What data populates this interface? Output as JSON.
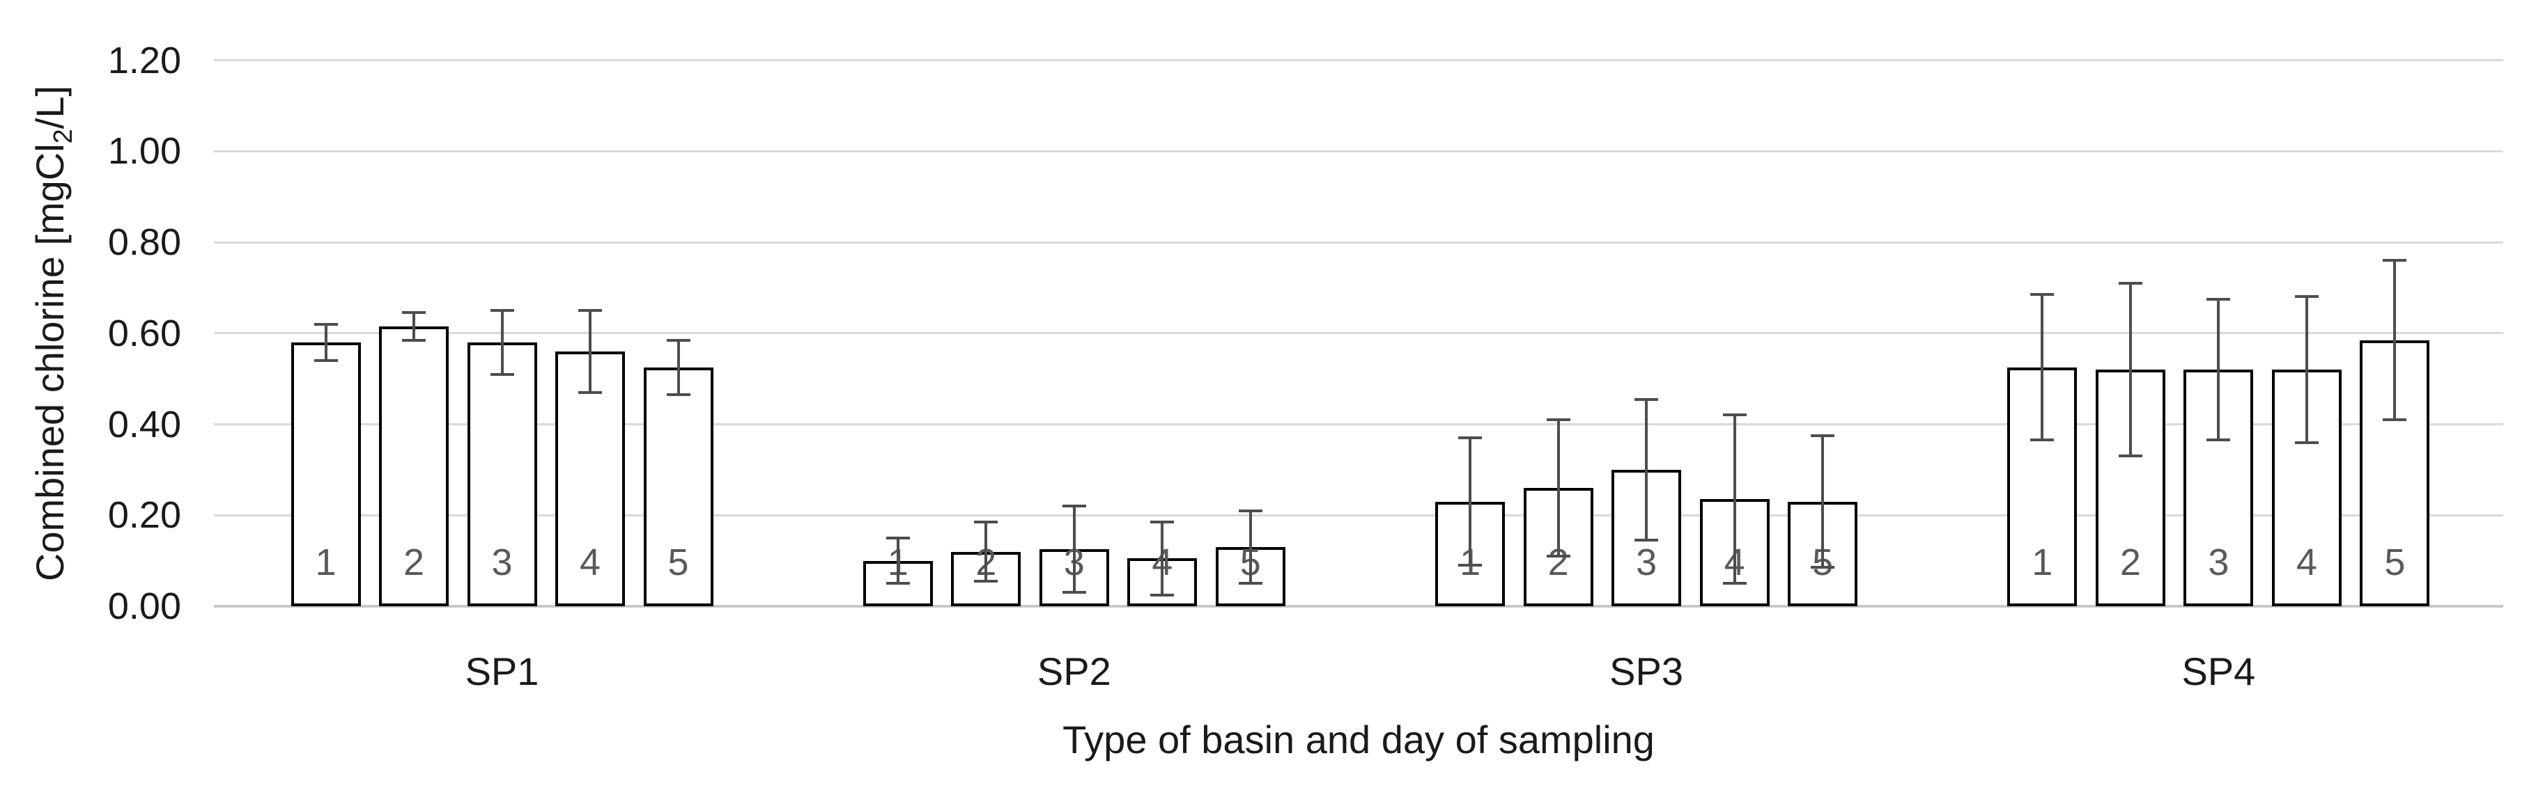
{
  "chart_data": {
    "type": "bar",
    "title": "",
    "xlabel": "Type of basin and day of sampling",
    "ylabel": "Combined chlorine [mgCl2/L]",
    "ylabel_parts": {
      "prefix": "Combined chlorine [mgCl",
      "sub": "2",
      "suffix": "/L]"
    },
    "y_axis": {
      "ticks": [
        "0.00",
        "0.20",
        "0.40",
        "0.60",
        "0.80",
        "1.00",
        "1.20"
      ],
      "range": [
        0,
        1.2
      ],
      "tick_step": 0.2,
      "grid": true
    },
    "categories": [
      "SP1",
      "SP2",
      "SP3",
      "SP4"
    ],
    "day_labels": [
      "1",
      "2",
      "3",
      "4",
      "5"
    ],
    "series": [
      {
        "name": "SP1",
        "values": [
          0.58,
          0.615,
          0.58,
          0.56,
          0.525
        ],
        "errors": [
          0.04,
          0.03,
          0.07,
          0.09,
          0.06
        ]
      },
      {
        "name": "SP2",
        "values": [
          0.1,
          0.12,
          0.125,
          0.105,
          0.13
        ],
        "errors": [
          0.05,
          0.065,
          0.095,
          0.08,
          0.08
        ]
      },
      {
        "name": "SP3",
        "values": [
          0.23,
          0.26,
          0.3,
          0.235,
          0.23
        ],
        "errors": [
          0.14,
          0.15,
          0.155,
          0.185,
          0.145
        ]
      },
      {
        "name": "SP4",
        "values": [
          0.525,
          0.52,
          0.52,
          0.52,
          0.585
        ],
        "errors": [
          0.16,
          0.19,
          0.155,
          0.16,
          0.175
        ]
      }
    ],
    "error_bars": "plus-minus, capped",
    "legend": "none",
    "colors": {
      "background": "#ffffff",
      "bar_fill": "#ffffff",
      "bar_border": "#000000",
      "error_bar": "#4d4d4d",
      "gridline": "#d9d9d9",
      "axis_line": "#c9c9c9",
      "tick_text": "#1a1a1a",
      "day_label_text": "#595959",
      "title_text": "#1a1a1a"
    }
  }
}
